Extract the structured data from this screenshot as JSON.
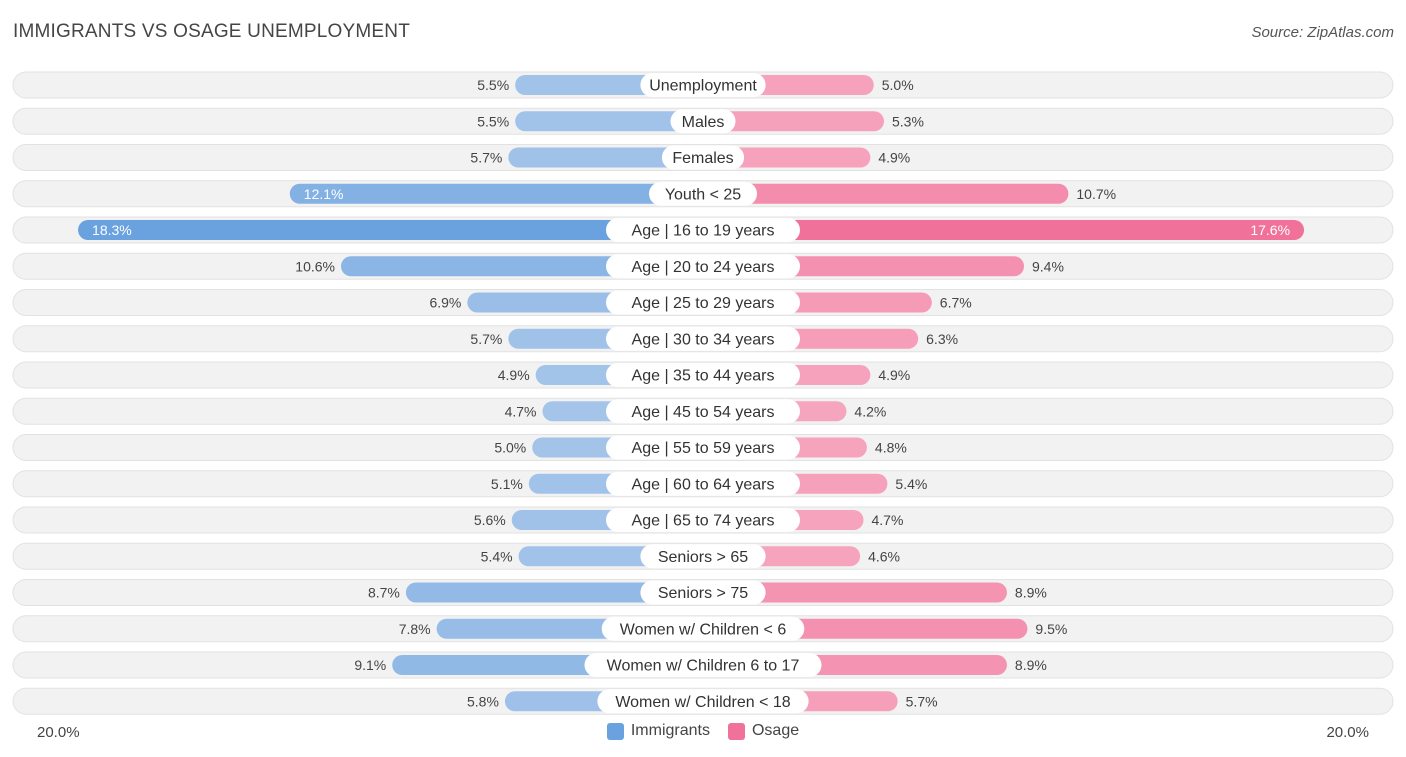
{
  "title": "IMMIGRANTS VS OSAGE UNEMPLOYMENT",
  "source": "Source: ZipAtlas.com",
  "axis": {
    "left_label": "20.0%",
    "right_label": "20.0%"
  },
  "legend": [
    {
      "label": "Immigrants",
      "color": "#6aa1df"
    },
    {
      "label": "Osage",
      "color": "#f07199"
    }
  ],
  "chart_data": {
    "type": "bar",
    "orientation": "horizontal-diverging",
    "xlim": [
      -20,
      20
    ],
    "unit": "%",
    "categories": [
      "Unemployment",
      "Males",
      "Females",
      "Youth < 25",
      "Age | 16 to 19 years",
      "Age | 20 to 24 years",
      "Age | 25 to 29 years",
      "Age | 30 to 34 years",
      "Age | 35 to 44 years",
      "Age | 45 to 54 years",
      "Age | 55 to 59 years",
      "Age | 60 to 64 years",
      "Age | 65 to 74 years",
      "Seniors > 65",
      "Seniors > 75",
      "Women w/ Children < 6",
      "Women w/ Children 6 to 17",
      "Women w/ Children < 18"
    ],
    "series": [
      {
        "name": "Immigrants",
        "side": "left",
        "values": [
          5.5,
          5.5,
          5.7,
          12.1,
          18.3,
          10.6,
          6.9,
          5.7,
          4.9,
          4.7,
          5.0,
          5.1,
          5.6,
          5.4,
          8.7,
          7.8,
          9.1,
          5.8
        ]
      },
      {
        "name": "Osage",
        "side": "right",
        "values": [
          5.0,
          5.3,
          4.9,
          10.7,
          17.6,
          9.4,
          6.7,
          6.3,
          4.9,
          4.2,
          4.8,
          5.4,
          4.7,
          4.6,
          8.9,
          9.5,
          8.9,
          5.7
        ]
      }
    ]
  }
}
